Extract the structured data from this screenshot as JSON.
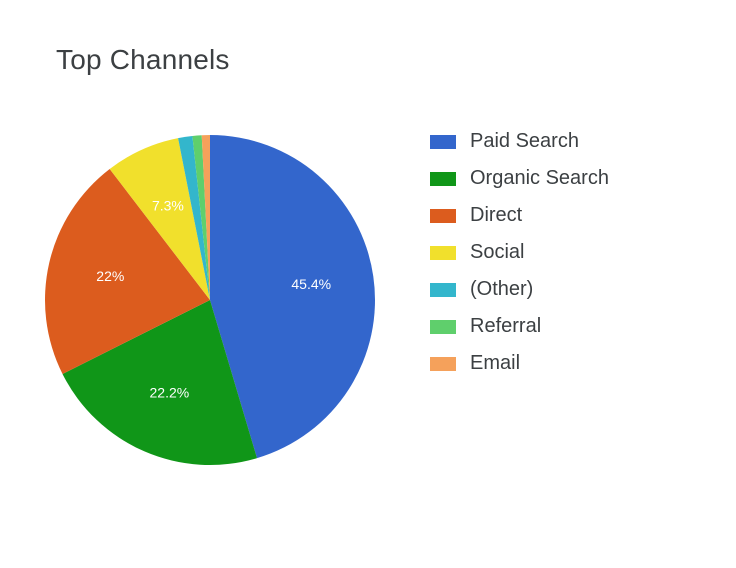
{
  "chart": {
    "type": "pie",
    "title": "Top Channels",
    "title_fontsize": 28,
    "title_color": "#3c4043",
    "background_color": "#ffffff",
    "radius": 165,
    "start_angle_deg": -90,
    "label_fontsize": 14,
    "label_color": "#ffffff",
    "legend": {
      "position": "right",
      "fontsize": 20,
      "text_color": "#3c4043",
      "swatch_width": 26,
      "swatch_height": 14,
      "item_gap": 14
    },
    "slices": [
      {
        "name": "Paid Search",
        "value": 45.4,
        "label": "45.4%",
        "show_label": true,
        "color": "#3366cc"
      },
      {
        "name": "Organic Search",
        "value": 22.2,
        "label": "22.2%",
        "show_label": true,
        "color": "#109618"
      },
      {
        "name": "Direct",
        "value": 22.0,
        "label": "22%",
        "show_label": true,
        "color": "#dc5c1e"
      },
      {
        "name": "Social",
        "value": 7.3,
        "label": "7.3%",
        "show_label": true,
        "color": "#f1e02c"
      },
      {
        "name": "(Other)",
        "value": 1.4,
        "label": "1.4%",
        "show_label": false,
        "color": "#33b6cc"
      },
      {
        "name": "Referral",
        "value": 0.9,
        "label": "0.9%",
        "show_label": false,
        "color": "#5fcf6c"
      },
      {
        "name": "Email",
        "value": 0.8,
        "label": "0.8%",
        "show_label": false,
        "color": "#f5a15b"
      }
    ]
  }
}
